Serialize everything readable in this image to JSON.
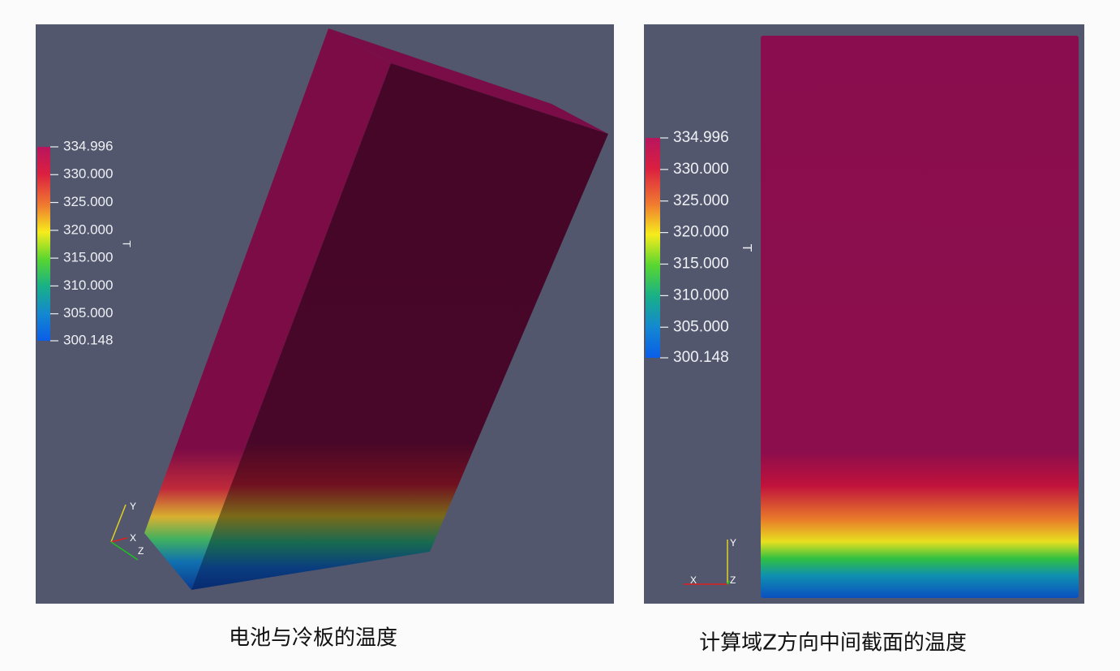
{
  "panels": [
    {
      "colorbar": {
        "title": "T",
        "ticks": [
          {
            "value": 334.996,
            "label": "334.996"
          },
          {
            "value": 330,
            "label": "330.000"
          },
          {
            "value": 325,
            "label": "325.000"
          },
          {
            "value": 320,
            "label": "320.000"
          },
          {
            "value": 315,
            "label": "315.000"
          },
          {
            "value": 310,
            "label": "310.000"
          },
          {
            "value": 305,
            "label": "305.000"
          },
          {
            "value": 300.148,
            "label": "300.148"
          }
        ]
      },
      "axes": {
        "x": "X",
        "y": "Y",
        "z": "Z"
      },
      "caption": "电池与冷板的温度"
    },
    {
      "colorbar": {
        "title": "T",
        "ticks": [
          {
            "value": 334.996,
            "label": "334.996"
          },
          {
            "value": 330,
            "label": "330.000"
          },
          {
            "value": 325,
            "label": "325.000"
          },
          {
            "value": 320,
            "label": "320.000"
          },
          {
            "value": 315,
            "label": "315.000"
          },
          {
            "value": 310,
            "label": "310.000"
          },
          {
            "value": 305,
            "label": "305.000"
          },
          {
            "value": 300.148,
            "label": "300.148"
          }
        ]
      },
      "axes": {
        "x": "X",
        "y": "Y",
        "z": "Z"
      },
      "caption": "计算域Z方向中间截面的温度"
    }
  ]
}
